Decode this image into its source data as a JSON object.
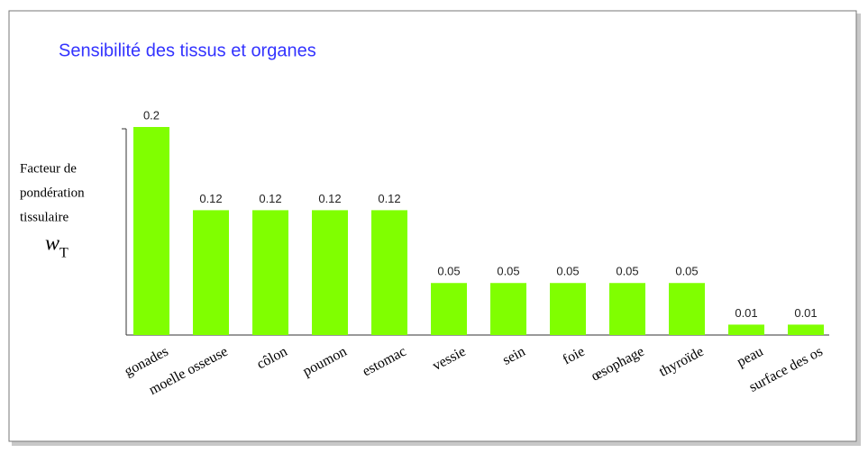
{
  "chart_data": {
    "type": "bar",
    "title": "Sensibilité des tissus et organes",
    "ylabel": [
      "Facteur de",
      "pondération",
      "tissulaire"
    ],
    "ylabel_symbol": "w",
    "ylabel_subscript": "T",
    "categories": [
      "gonades",
      "moelle osseuse",
      "côlon",
      "poumon",
      "estomac",
      "vessie",
      "sein",
      "foie",
      "œsophage",
      "thyroïde",
      "peau",
      "surface des os"
    ],
    "values": [
      0.2,
      0.12,
      0.12,
      0.12,
      0.12,
      0.05,
      0.05,
      0.05,
      0.05,
      0.05,
      0.01,
      0.01
    ],
    "color": "#80ff00",
    "ylim": [
      0,
      0.2
    ]
  }
}
